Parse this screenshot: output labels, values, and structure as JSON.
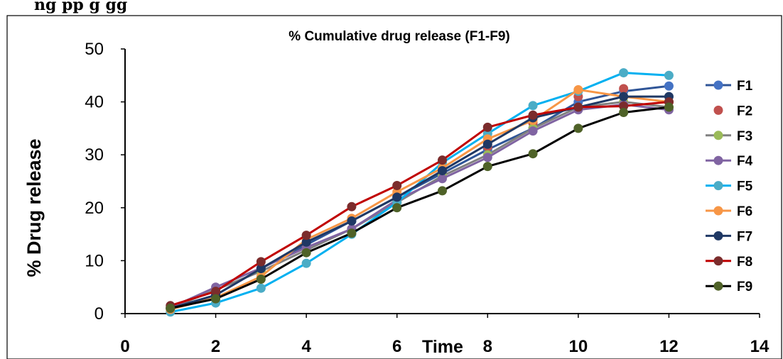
{
  "page_header": "ng                                    pp                g     gg",
  "chart_data": {
    "type": "line",
    "title": "% Cumulative drug release (F1-F9)",
    "xlabel": "Time",
    "ylabel": "% Drug release",
    "xlim": [
      0,
      14
    ],
    "ylim": [
      0,
      50
    ],
    "x_ticks": [
      "0",
      "2",
      "4",
      "6",
      "8",
      "10",
      "12",
      "14"
    ],
    "y_ticks": [
      "0",
      "10",
      "20",
      "30",
      "40",
      "50"
    ],
    "grid": false,
    "legend_position": "right",
    "x": [
      1,
      2,
      3,
      4,
      5,
      6,
      7,
      8,
      9,
      10,
      11,
      12
    ],
    "series": [
      {
        "name": "F1",
        "color": "#4472C4",
        "line_color": "#2F5597",
        "values": [
          1.0,
          3.5,
          8.5,
          13.0,
          17.5,
          22.0,
          26.5,
          31.0,
          35.0,
          40.0,
          42.0,
          43.0
        ]
      },
      {
        "name": "F2",
        "color": "#C0504D",
        "line_color": "none",
        "values": [
          1.2,
          4.0,
          8.2,
          12.0,
          16.0,
          21.0,
          27.0,
          31.5,
          36.0,
          41.0,
          42.5,
          40.0
        ]
      },
      {
        "name": "F3",
        "color": "#9BBB59",
        "line_color": "#808080",
        "values": [
          1.0,
          4.5,
          8.0,
          12.0,
          16.0,
          21.0,
          26.0,
          30.0,
          35.0,
          39.0,
          40.0,
          39.0
        ]
      },
      {
        "name": "F4",
        "color": "#8064A2",
        "line_color": "#8064A2",
        "values": [
          1.1,
          5.0,
          8.6,
          12.5,
          16.0,
          21.5,
          25.5,
          29.5,
          34.5,
          38.5,
          39.5,
          38.5
        ]
      },
      {
        "name": "F5",
        "color": "#4BACC6",
        "line_color": "#00B0F0",
        "values": [
          0.3,
          2.0,
          4.8,
          9.5,
          15.0,
          21.0,
          28.5,
          34.0,
          39.3,
          42.0,
          45.5,
          45.0
        ]
      },
      {
        "name": "F6",
        "color": "#F79646",
        "line_color": "#F79646",
        "values": [
          0.8,
          3.0,
          7.0,
          14.0,
          18.0,
          23.0,
          27.5,
          33.0,
          36.5,
          42.3,
          41.0,
          40.0
        ]
      },
      {
        "name": "F7",
        "color": "#1F3864",
        "line_color": "#1F3864",
        "values": [
          1.0,
          3.5,
          8.5,
          13.5,
          17.5,
          22.0,
          27.0,
          32.0,
          37.0,
          39.0,
          41.0,
          41.0
        ]
      },
      {
        "name": "F8",
        "color": "#7B2C2C",
        "line_color": "#C00000",
        "values": [
          1.5,
          4.2,
          9.8,
          14.8,
          20.2,
          24.2,
          29.0,
          35.2,
          37.5,
          39.0,
          39.2,
          40.0
        ]
      },
      {
        "name": "F9",
        "color": "#4F6228",
        "line_color": "#000000",
        "values": [
          1.0,
          2.8,
          6.5,
          11.5,
          15.2,
          20.0,
          23.2,
          27.8,
          30.2,
          35.0,
          38.0,
          39.0
        ]
      }
    ]
  }
}
